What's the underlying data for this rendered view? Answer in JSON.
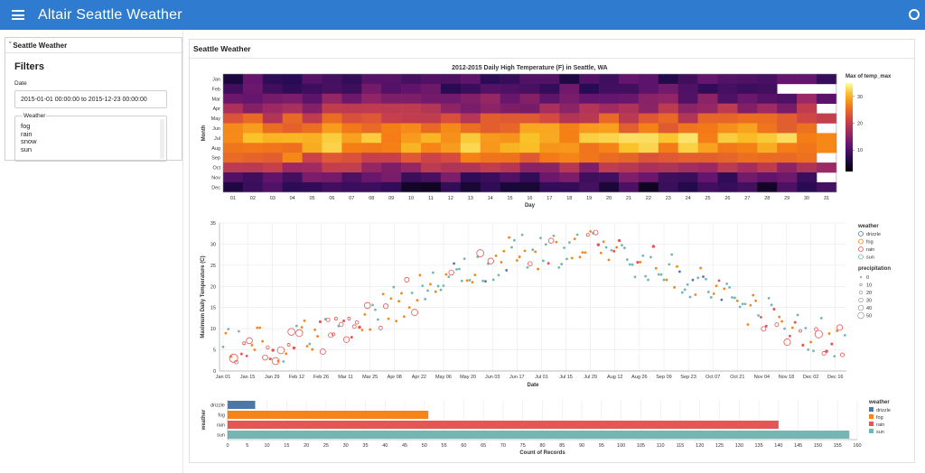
{
  "app": {
    "title": "Altair Seattle Weather"
  },
  "sidebar": {
    "panel_title": "Seattle Weather",
    "filters_title": "Filters",
    "date_label": "Date",
    "date_value": "2015-01-01 00:00:00 to 2015-12-23 00:00:00",
    "weather_label": "Weather",
    "weather_options": [
      "fog",
      "rain",
      "snow",
      "sun"
    ]
  },
  "main": {
    "panel_title": "Seattle Weather"
  },
  "colors": {
    "appbar": "#2f7bd0",
    "drizzle": "#4c78a8",
    "fog": "#f58518",
    "rain": "#e45756",
    "sun": "#72b7b2"
  },
  "chart_data": [
    {
      "type": "heatmap",
      "title": "2012-2015 Daily High Temperature (F) in Seattle, WA",
      "xlabel": "Day",
      "ylabel": "Month",
      "x_categories": [
        "01",
        "02",
        "03",
        "04",
        "05",
        "06",
        "07",
        "08",
        "09",
        "10",
        "11",
        "12",
        "13",
        "14",
        "15",
        "16",
        "17",
        "18",
        "19",
        "20",
        "21",
        "22",
        "23",
        "24",
        "25",
        "26",
        "27",
        "28",
        "29",
        "30",
        "31"
      ],
      "y_categories": [
        "Jan",
        "Feb",
        "Mar",
        "Apr",
        "May",
        "Jun",
        "Jul",
        "Aug",
        "Sep",
        "Oct",
        "Nov",
        "Dec"
      ],
      "legend_title": "Max of temp_max",
      "legend_ticks": [
        10,
        20,
        30
      ],
      "color_range": [
        2,
        35
      ],
      "monthly_base": [
        9,
        10,
        13,
        17,
        22,
        26,
        30,
        29,
        24,
        17,
        11,
        7
      ],
      "missing": [
        [
          1,
          29
        ],
        [
          1,
          30
        ],
        [
          1,
          31
        ],
        [
          3,
          31
        ],
        [
          5,
          31
        ],
        [
          8,
          31
        ],
        [
          10,
          31
        ]
      ]
    },
    {
      "type": "scatter",
      "xlabel": "Date",
      "ylabel": "Maximum Daily Temperature (C)",
      "x_ticks": [
        "Jan 01",
        "Jan 15",
        "Jan 29",
        "Feb 12",
        "Feb 26",
        "Mar 11",
        "Mar 25",
        "Apr 08",
        "Apr 22",
        "May 06",
        "May 20",
        "Jun 03",
        "Jun 17",
        "Jul 01",
        "Jul 15",
        "Jul 29",
        "Aug 12",
        "Aug 26",
        "Sep 09",
        "Sep 23",
        "Oct 07",
        "Oct 21",
        "Nov 04",
        "Nov 18",
        "Dec 02",
        "Dec 16"
      ],
      "ylim": [
        0,
        35
      ],
      "y_ticks": [
        0,
        5,
        10,
        15,
        20,
        25,
        30,
        35
      ],
      "color_legend_title": "weather",
      "color_legend": [
        "drizzle",
        "fog",
        "rain",
        "sun"
      ],
      "size_legend_title": "precipitation",
      "size_legend": [
        0,
        10,
        20,
        30,
        40,
        50
      ]
    },
    {
      "type": "bar",
      "orientation": "horizontal",
      "xlabel": "Count of Records",
      "ylabel": "weather",
      "categories": [
        "drizzle",
        "fog",
        "rain",
        "sun"
      ],
      "values": [
        7,
        51,
        140,
        158
      ],
      "xlim": [
        0,
        160
      ],
      "x_ticks": [
        0,
        5,
        10,
        15,
        20,
        25,
        30,
        35,
        40,
        45,
        50,
        55,
        60,
        65,
        70,
        75,
        80,
        85,
        90,
        95,
        100,
        105,
        110,
        115,
        120,
        125,
        130,
        135,
        140,
        145,
        150,
        155,
        160
      ],
      "legend_title": "weather",
      "legend": [
        "drizzle",
        "fog",
        "rain",
        "sun"
      ]
    }
  ]
}
